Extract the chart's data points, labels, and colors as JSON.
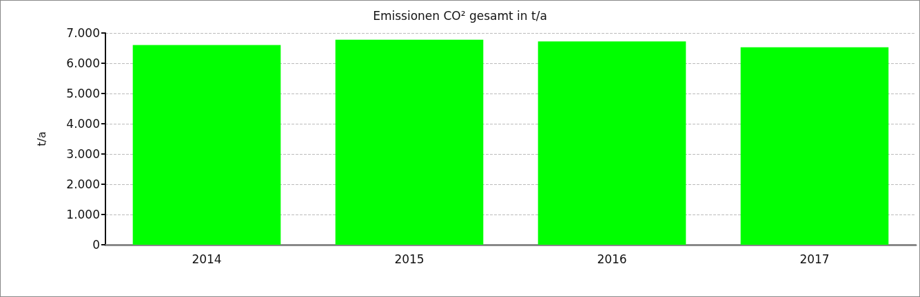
{
  "chart_data": {
    "type": "bar",
    "title": "Emissionen CO² gesamt in t/a",
    "ylabel": "t/a",
    "categories": [
      "2014",
      "2015",
      "2016",
      "2017"
    ],
    "values": [
      6600,
      6780,
      6720,
      6530
    ],
    "color": "#00ff00",
    "ylim": [
      0,
      7000
    ],
    "yticks": [
      {
        "value": 0,
        "label": "0"
      },
      {
        "value": 1000,
        "label": "1.000"
      },
      {
        "value": 2000,
        "label": "2.000"
      },
      {
        "value": 3000,
        "label": "3.000"
      },
      {
        "value": 4000,
        "label": "4.000"
      },
      {
        "value": 5000,
        "label": "5.000"
      },
      {
        "value": 6000,
        "label": "6.000"
      },
      {
        "value": 7000,
        "label": "7.000"
      }
    ],
    "grid": "y"
  }
}
